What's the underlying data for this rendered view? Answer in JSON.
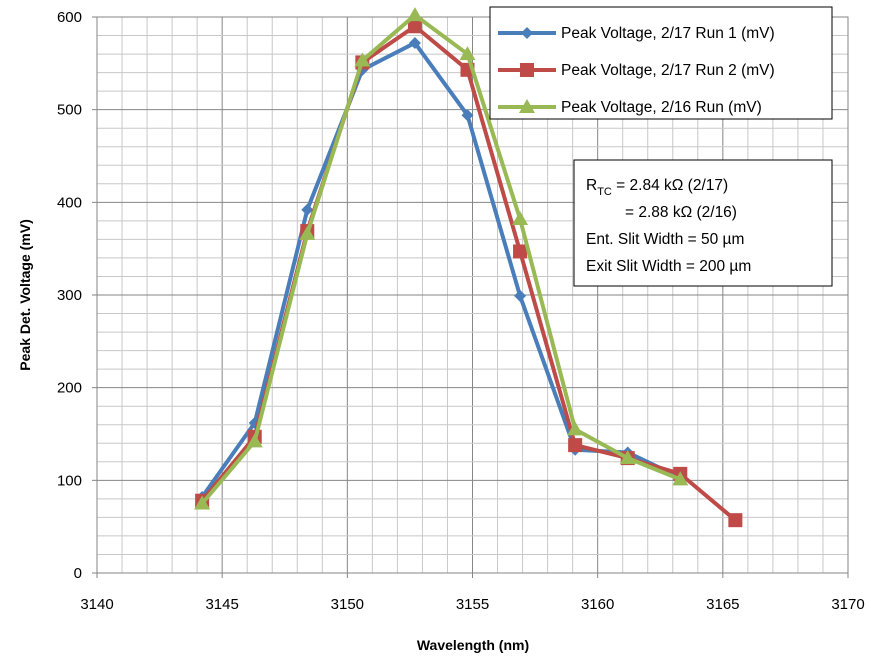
{
  "chart_data": {
    "type": "line",
    "xlabel": "Wavelength (nm)",
    "ylabel": "Peak Det. Voltage (mV)",
    "xlim": [
      3140,
      3170
    ],
    "ylim": [
      0,
      600
    ],
    "xticks": [
      3140,
      3145,
      3150,
      3155,
      3160,
      3165,
      3170
    ],
    "yticks": [
      0,
      100,
      200,
      300,
      400,
      500,
      600
    ],
    "grid": true,
    "minor_grid": true,
    "legend_position": "top-right",
    "series": [
      {
        "name": "Peak Voltage, 2/17 Run 1 (mV)",
        "color": "#4a7ebb",
        "marker": "diamond",
        "x": [
          3144.2,
          3146.3,
          3148.4,
          3150.6,
          3152.7,
          3154.8,
          3156.9,
          3159.1,
          3161.2,
          3163.3
        ],
        "y": [
          82,
          162,
          392,
          543,
          572,
          494,
          299,
          133,
          130,
          103
        ]
      },
      {
        "name": "Peak Voltage, 2/17 Run 2 (mV)",
        "color": "#be4b48",
        "marker": "square",
        "x": [
          3144.2,
          3146.3,
          3148.4,
          3150.6,
          3152.7,
          3154.8,
          3156.9,
          3159.1,
          3161.2,
          3163.3,
          3165.5
        ],
        "y": [
          78,
          147,
          369,
          551,
          590,
          543,
          347,
          138,
          124,
          107,
          57
        ]
      },
      {
        "name": "Peak Voltage, 2/16 Run (mV)",
        "color": "#98b954",
        "marker": "triangle",
        "x": [
          3144.2,
          3146.3,
          3148.4,
          3150.6,
          3152.7,
          3154.8,
          3156.9,
          3159.1,
          3161.2,
          3163.3
        ],
        "y": [
          75,
          142,
          366,
          553,
          602,
          560,
          382,
          155,
          124,
          101
        ]
      }
    ],
    "annotation": {
      "rtc_prefix": "R",
      "rtc_sub": "TC",
      "line1_rest": " = 2.84 kΩ (2/17)",
      "line2": "= 2.88 kΩ (2/16)",
      "line3": "Ent. Slit Width = 50 µm",
      "line4": "Exit Slit Width = 200 µm"
    }
  }
}
